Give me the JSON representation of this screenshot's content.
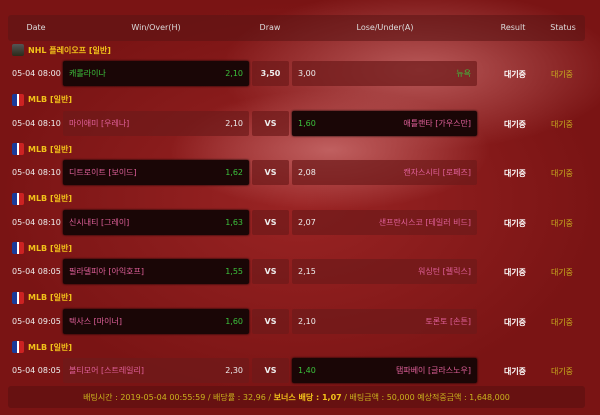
{
  "header": {
    "date": "Date",
    "win": "Win/Over(H)",
    "draw": "Draw",
    "lose": "Lose/Under(A)",
    "result": "Result",
    "status": "Status"
  },
  "matches": [
    {
      "league": "NHL 플레이오프 [일반]",
      "icon": "nhl-icon",
      "date": "05-04 08:00",
      "home": "캐롤라이나",
      "home_odd": "2,10",
      "draw": "3,50",
      "away_odd": "3,00",
      "away": "뉴욕",
      "selected": "win",
      "result": "대기중",
      "status": "대기중"
    },
    {
      "league": "MLB [일반]",
      "icon": "mlb-icon",
      "date": "05-04 08:10",
      "home": "마이애미 [우레나]",
      "home_odd": "2,10",
      "draw": "VS",
      "away_odd": "1,60",
      "away": "애틀랜타 [가우스만]",
      "selected": "lose",
      "result": "대기중",
      "status": "대기중"
    },
    {
      "league": "MLB [일반]",
      "icon": "mlb-icon",
      "date": "05-04 08:10",
      "home": "디트로이트 [보이드]",
      "home_odd": "1,62",
      "draw": "VS",
      "away_odd": "2,08",
      "away": "캔자스시티 [로페즈]",
      "selected": "win",
      "result": "대기중",
      "status": "대기중"
    },
    {
      "league": "MLB [일반]",
      "icon": "mlb-icon",
      "date": "05-04 08:10",
      "home": "신시내티 [그레이]",
      "home_odd": "1,63",
      "draw": "VS",
      "away_odd": "2,07",
      "away": "샌프란시스코 [테일러 비드]",
      "selected": "win",
      "result": "대기중",
      "status": "대기중"
    },
    {
      "league": "MLB [일반]",
      "icon": "mlb-icon",
      "date": "05-04 08:05",
      "home": "필라델피아 [아익호프]",
      "home_odd": "1,55",
      "draw": "VS",
      "away_odd": "2,15",
      "away": "워싱턴 [렐릭스]",
      "selected": "win",
      "result": "대기중",
      "status": "대기중"
    },
    {
      "league": "MLB [일반]",
      "icon": "mlb-icon",
      "date": "05-04 09:05",
      "home": "텍사스 [마이너]",
      "home_odd": "1,60",
      "draw": "VS",
      "away_odd": "2,10",
      "away": "토론토 [손튼]",
      "selected": "win",
      "result": "대기중",
      "status": "대기중"
    },
    {
      "league": "MLB [일반]",
      "icon": "mlb-icon",
      "date": "05-04 08:05",
      "home": "볼티모어 [스트레일리]",
      "home_odd": "2,30",
      "draw": "VS",
      "away_odd": "1,40",
      "away": "탬파베이 [글라스노우]",
      "selected": "lose",
      "result": "대기중",
      "status": "대기중"
    }
  ],
  "footer": {
    "text1": "배팅시간 : 2019-05-04 00:55:59 / 배당률 : 32,96 / ",
    "bonus": "보너스 배당 : 1,07",
    "text2": " / 배팅금액 : 50,000 예상적중금액 : 1,648,000"
  }
}
